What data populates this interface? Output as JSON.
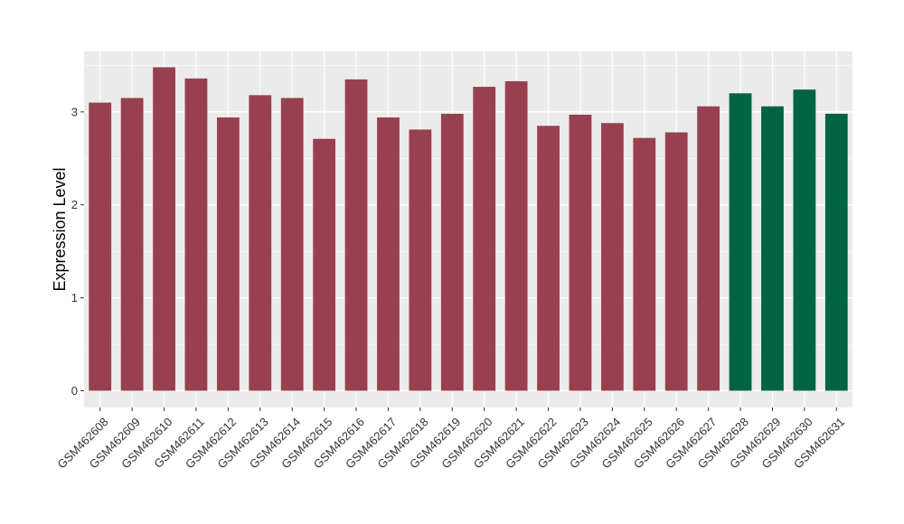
{
  "chart_data": {
    "type": "bar",
    "ylabel": "Expression Level",
    "xlabel": "",
    "ylim": [
      -0.18,
      3.65
    ],
    "yticks": [
      0,
      1,
      2,
      3
    ],
    "grid": true,
    "categories": [
      "GSM462608",
      "GSM462609",
      "GSM462610",
      "GSM462611",
      "GSM462612",
      "GSM462613",
      "GSM462614",
      "GSM462615",
      "GSM462616",
      "GSM462617",
      "GSM462618",
      "GSM462619",
      "GSM462620",
      "GSM462621",
      "GSM462622",
      "GSM462623",
      "GSM462624",
      "GSM462625",
      "GSM462626",
      "GSM462627",
      "GSM462628",
      "GSM462629",
      "GSM462630",
      "GSM462631"
    ],
    "values": [
      3.1,
      3.15,
      3.48,
      3.36,
      2.94,
      3.18,
      3.15,
      2.71,
      3.35,
      2.94,
      2.81,
      2.98,
      3.27,
      3.33,
      2.85,
      2.97,
      2.88,
      2.72,
      2.78,
      3.06,
      3.2,
      3.06,
      3.24,
      2.98
    ],
    "groups": [
      "a",
      "a",
      "a",
      "a",
      "a",
      "a",
      "a",
      "a",
      "a",
      "a",
      "a",
      "a",
      "a",
      "a",
      "a",
      "a",
      "a",
      "a",
      "a",
      "a",
      "b",
      "b",
      "b",
      "b"
    ],
    "group_colors": {
      "a": "#98404F",
      "b": "#006443"
    },
    "panel_background": "#EBEBEB",
    "grid_color": "#FFFFFF"
  }
}
